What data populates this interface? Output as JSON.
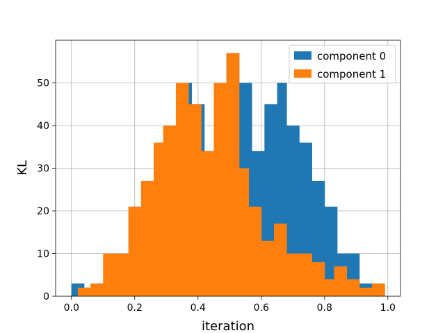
{
  "chart_data": {
    "type": "bar",
    "subtype": "histogram",
    "xlabel": "iteration",
    "ylabel": "KL",
    "xlim": [
      -0.05,
      1.04
    ],
    "ylim": [
      0,
      60
    ],
    "xticks": [
      "0.0",
      "0.2",
      "0.4",
      "0.6",
      "0.8",
      "1.0"
    ],
    "yticks": [
      "0",
      "10",
      "20",
      "30",
      "40",
      "50"
    ],
    "grid": true,
    "legend": "top-right",
    "series": [
      {
        "name": "component 0",
        "color": "#1f77b4",
        "bin_edges": [
          0.0,
          0.04,
          0.08,
          0.11,
          0.15,
          0.19,
          0.23,
          0.27,
          0.3,
          0.34,
          0.38,
          0.42,
          0.46,
          0.49,
          0.53,
          0.57,
          0.61,
          0.65,
          0.68,
          0.72,
          0.76,
          0.8,
          0.84,
          0.87,
          0.91,
          0.95,
          0.99
        ],
        "counts": [
          3,
          2,
          3,
          10,
          10,
          21,
          27,
          36,
          40,
          50,
          45,
          34,
          50,
          57,
          50,
          34,
          45,
          50,
          40,
          36,
          27,
          21,
          10,
          10,
          3,
          2
        ]
      },
      {
        "name": "component 1",
        "color": "#ff7f0e",
        "bin_edges": [
          0.02,
          0.06,
          0.1,
          0.14,
          0.18,
          0.22,
          0.26,
          0.29,
          0.33,
          0.37,
          0.41,
          0.45,
          0.49,
          0.53,
          0.56,
          0.6,
          0.64,
          0.68,
          0.72,
          0.76,
          0.8,
          0.83,
          0.87,
          0.91,
          0.95,
          0.99
        ],
        "counts": [
          2,
          3,
          10,
          10,
          21,
          27,
          36,
          40,
          50,
          45,
          34,
          50,
          57,
          30,
          21,
          13,
          17,
          10,
          10,
          8,
          4,
          7,
          4,
          2,
          3
        ]
      }
    ]
  }
}
